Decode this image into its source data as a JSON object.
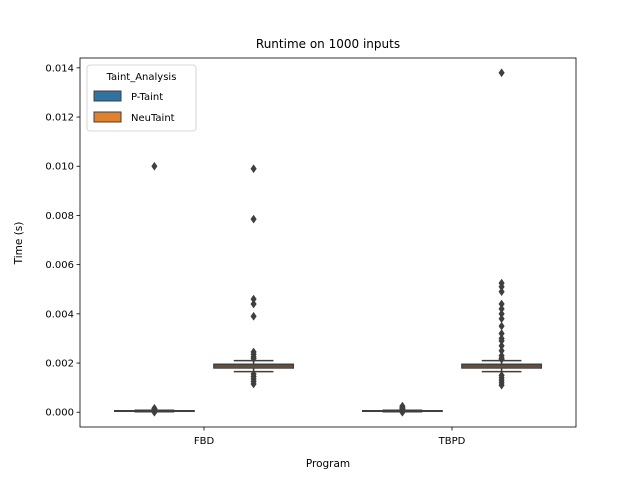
{
  "chart_data": {
    "type": "box",
    "title": "Runtime on 1000 inputs",
    "xlabel": "Program",
    "ylabel": "Time (s)",
    "categories": [
      "FBD",
      "TBPD"
    ],
    "ylim": [
      -0.0006,
      0.0144
    ],
    "yticks": [
      0.0,
      0.002,
      0.004,
      0.006,
      0.008,
      0.01,
      0.012,
      0.014
    ],
    "ytick_labels": [
      "0.000",
      "0.002",
      "0.004",
      "0.006",
      "0.008",
      "0.010",
      "0.012",
      "0.014"
    ],
    "grid": false,
    "legend": {
      "title": "Taint_Analysis",
      "placement": "top-left",
      "entries": [
        {
          "label": "P-Taint",
          "color": "#3274a1"
        },
        {
          "label": "NeuTaint",
          "color": "#e1812c"
        }
      ]
    },
    "series": [
      {
        "name": "P-Taint",
        "color": "#3274a1",
        "boxes": [
          {
            "category": "FBD",
            "whislo": 2e-05,
            "q1": 4e-05,
            "med": 5e-05,
            "q3": 6e-05,
            "whishi": 8e-05,
            "fliers": [
              0.01,
              0.00016,
              0.00013,
              0.00011,
              0.0001,
              9e-05,
              0.0,
              1e-05
            ]
          },
          {
            "category": "TBPD",
            "whislo": 2e-05,
            "q1": 4e-05,
            "med": 5e-05,
            "q3": 6e-05,
            "whishi": 8e-05,
            "fliers": [
              0.00025,
              0.0002,
              0.00016,
              0.00013,
              0.0001,
              0.0,
              1e-05
            ]
          }
        ]
      },
      {
        "name": "NeuTaint",
        "color": "#e1812c",
        "boxes": [
          {
            "category": "FBD",
            "whislo": 0.00165,
            "q1": 0.0018,
            "med": 0.00188,
            "q3": 0.00195,
            "whishi": 0.0021,
            "fliers": [
              0.0099,
              0.00785,
              0.0046,
              0.0044,
              0.0039,
              0.00245,
              0.00235,
              0.00225,
              0.00218,
              0.00155,
              0.00145,
              0.00135,
              0.00125,
              0.00115
            ]
          },
          {
            "category": "TBPD",
            "whislo": 0.00165,
            "q1": 0.0018,
            "med": 0.00188,
            "q3": 0.00195,
            "whishi": 0.0021,
            "fliers": [
              0.0138,
              0.00525,
              0.0051,
              0.0049,
              0.0044,
              0.0042,
              0.004,
              0.0038,
              0.0035,
              0.0032,
              0.003,
              0.0029,
              0.0027,
              0.0025,
              0.0023,
              0.0022,
              0.00215,
              0.0015,
              0.0014,
              0.0013,
              0.0012,
              0.0011
            ]
          }
        ]
      }
    ]
  }
}
